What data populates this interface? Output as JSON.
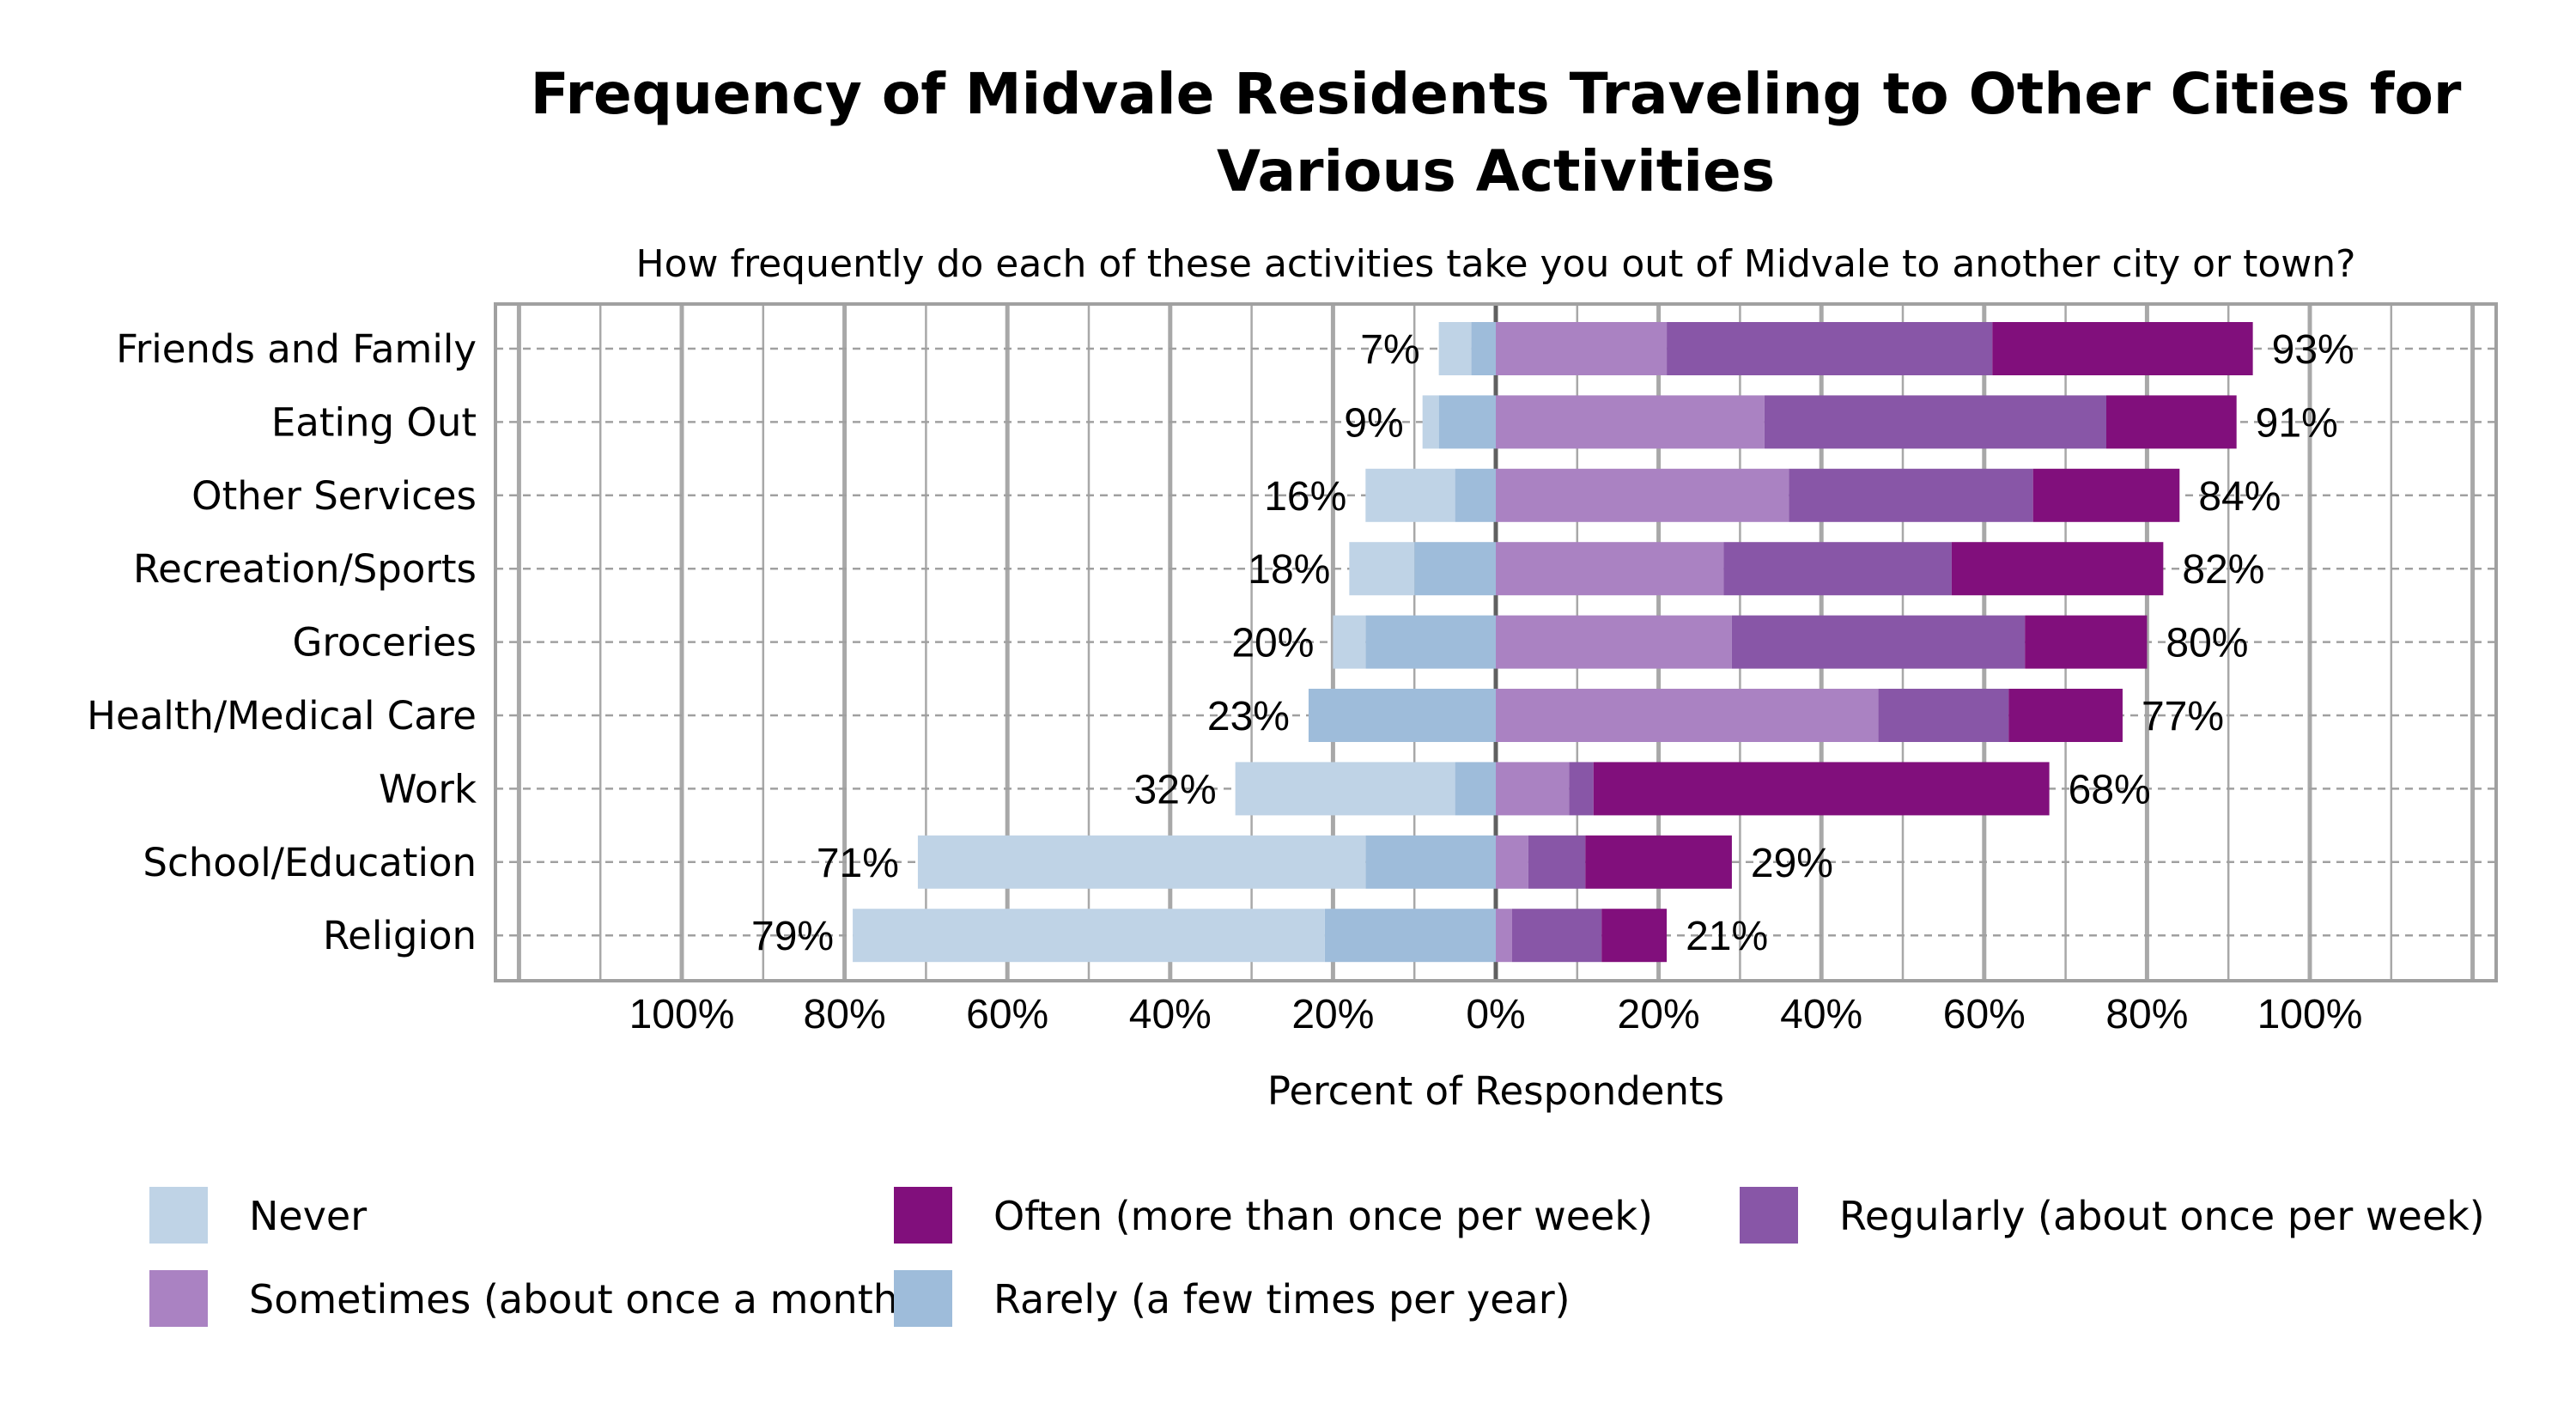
{
  "chart_data": {
    "type": "bar",
    "orientation": "horizontal",
    "stacking": "diverging",
    "title": "Frequency of Midvale Residents Traveling to Other Cities for Various Activities",
    "subtitle": "How frequently do each of these activities take you out of Midvale to another city or town?",
    "xlabel": "Percent of Respondents",
    "ylabel": "",
    "xlim": [
      -123,
      123
    ],
    "x_ticks": [
      -100,
      -80,
      -60,
      -40,
      -20,
      0,
      20,
      40,
      60,
      80,
      100
    ],
    "x_tick_labels": [
      "100%",
      "80%",
      "60%",
      "40%",
      "20%",
      "0%",
      "20%",
      "40%",
      "60%",
      "80%",
      "100%"
    ],
    "grid": true,
    "legend_position": "bottom",
    "categories": [
      "Friends and Family",
      "Eating Out",
      "Other Services",
      "Recreation/Sports",
      "Groceries",
      "Health/Medical Care",
      "Work",
      "School/Education",
      "Religion"
    ],
    "series": [
      {
        "name": "Never",
        "side": "negative",
        "color": "#bfd3e6",
        "values": [
          4,
          2,
          11,
          8,
          4,
          0,
          27,
          55,
          58
        ]
      },
      {
        "name": "Rarely (a few times per year)",
        "side": "negative",
        "color": "#9ebcda",
        "values": [
          3,
          7,
          5,
          10,
          16,
          23,
          5,
          16,
          21
        ]
      },
      {
        "name": "Sometimes (about once a month)",
        "side": "positive",
        "color": "#aa82c2",
        "values": [
          21,
          33,
          36,
          28,
          29,
          47,
          9,
          4,
          2
        ]
      },
      {
        "name": "Regularly (about once per week)",
        "side": "positive",
        "color": "#8856a7",
        "values": [
          40,
          42,
          30,
          28,
          36,
          16,
          3,
          7,
          11
        ]
      },
      {
        "name": "Often (more than once per week)",
        "side": "positive",
        "color": "#810f7c",
        "values": [
          32,
          16,
          18,
          26,
          15,
          14,
          56,
          18,
          8
        ]
      }
    ],
    "negative_labels": [
      "7%",
      "9%",
      "16%",
      "18%",
      "20%",
      "23%",
      "32%",
      "71%",
      "79%"
    ],
    "positive_labels": [
      "93%",
      "91%",
      "84%",
      "82%",
      "80%",
      "77%",
      "68%",
      "29%",
      "21%"
    ],
    "legend_order": [
      0,
      2,
      4,
      1,
      3
    ]
  }
}
